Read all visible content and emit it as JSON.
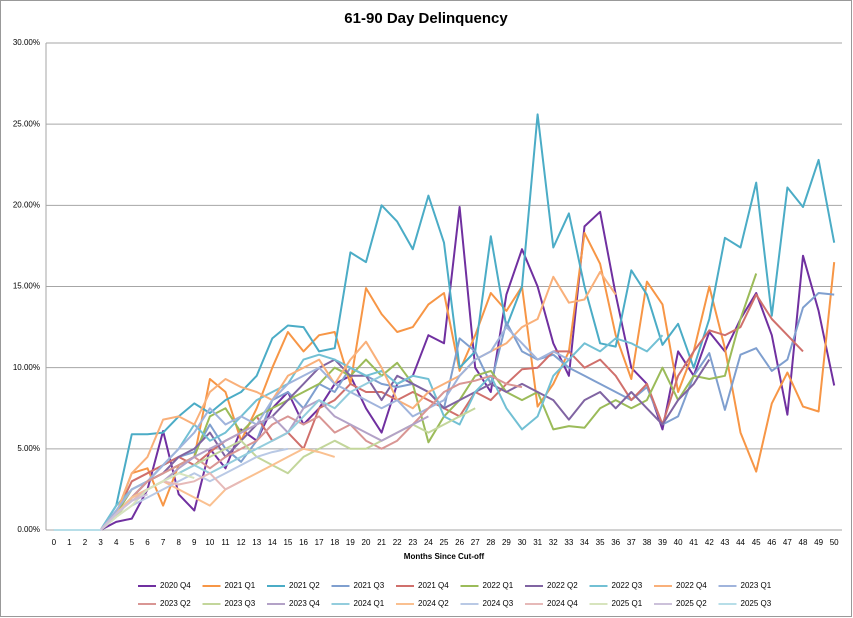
{
  "chart_data": {
    "type": "line",
    "title": "61-90 Day Delinquency",
    "x_label": "Months Since Cut-off",
    "x": [
      0,
      1,
      2,
      3,
      4,
      5,
      6,
      7,
      8,
      9,
      10,
      11,
      12,
      13,
      14,
      15,
      16,
      17,
      18,
      19,
      20,
      21,
      22,
      23,
      24,
      25,
      26,
      27,
      28,
      29,
      30,
      31,
      32,
      33,
      34,
      35,
      36,
      37,
      38,
      39,
      40,
      41,
      42,
      43,
      44,
      45,
      46,
      47,
      48,
      49,
      50
    ],
    "ylim": [
      0,
      30
    ],
    "yticks": [
      {
        "value": 0,
        "label": "0.00%"
      },
      {
        "value": 5,
        "label": "5.00%"
      },
      {
        "value": 10,
        "label": "10.00%"
      },
      {
        "value": 15,
        "label": "15.00%"
      },
      {
        "value": 20,
        "label": "20.00%"
      },
      {
        "value": 25,
        "label": "25.00%"
      },
      {
        "value": 30,
        "label": "30.00%"
      }
    ],
    "grid": true,
    "legend": "bottom",
    "series": [
      {
        "name": "2020 Q4",
        "color": "#7030a0",
        "values": [
          0,
          0,
          0,
          0,
          0.5,
          0.7,
          2.5,
          6.1,
          2.2,
          1.2,
          5.0,
          3.8,
          6.2,
          5.5,
          7.5,
          8.5,
          6.5,
          7.5,
          9.0,
          9.5,
          7.5,
          6.0,
          9.0,
          9.5,
          12.0,
          11.5,
          19.9,
          10.0,
          8.5,
          14.5,
          17.3,
          15.0,
          11.5,
          9.5,
          18.7,
          19.6,
          14.5,
          10.0,
          9.0,
          6.2,
          11.0,
          9.5,
          12.2,
          11.0,
          13.0,
          14.6,
          12.0,
          7.1,
          16.9,
          13.5,
          8.9
        ]
      },
      {
        "name": "2021 Q1",
        "color": "#f79646",
        "values": [
          0,
          0,
          0,
          0,
          1.0,
          3.5,
          3.8,
          1.5,
          4.0,
          4.5,
          9.3,
          8.5,
          5.5,
          7.5,
          10.0,
          12.2,
          11.0,
          12.0,
          12.2,
          9.0,
          14.9,
          13.3,
          12.2,
          12.5,
          13.9,
          14.6,
          9.8,
          12.0,
          14.6,
          13.5,
          15.0,
          7.6,
          9.0,
          11.0,
          18.3,
          16.4,
          12.0,
          9.3,
          15.3,
          13.9,
          8.5,
          11.0,
          15.0,
          11.2,
          6.0,
          3.6,
          7.8,
          9.7,
          7.6,
          7.3,
          16.5
        ]
      },
      {
        "name": "2021 Q2",
        "color": "#4bacc6",
        "values": [
          0,
          0,
          0,
          0,
          1.5,
          5.9,
          5.9,
          6.0,
          7.0,
          7.8,
          7.2,
          8.0,
          8.5,
          9.5,
          11.8,
          12.6,
          12.5,
          11.0,
          11.2,
          17.1,
          16.5,
          20.0,
          19.0,
          17.3,
          20.6,
          17.7,
          10.0,
          11.0,
          18.1,
          12.5,
          15.0,
          25.6,
          17.4,
          19.5,
          15.0,
          11.5,
          11.3,
          16.0,
          14.5,
          11.4,
          12.7,
          10.0,
          13.0,
          18.0,
          17.4,
          21.4,
          13.2,
          21.1,
          19.9,
          22.8,
          17.7
        ]
      },
      {
        "name": "2021 Q3",
        "color": "#7f9fcf",
        "values": [
          0,
          0,
          0,
          0,
          1.0,
          2.0,
          3.0,
          4.0,
          4.5,
          4.8,
          6.5,
          5.0,
          4.2,
          5.5,
          8.0,
          8.5,
          7.5,
          9.0,
          8.5,
          10.0,
          9.5,
          9.0,
          8.8,
          9.0,
          8.5,
          7.5,
          11.8,
          11.0,
          9.0,
          12.8,
          11.0,
          10.5,
          10.8,
          10.0,
          9.5,
          9.0,
          8.5,
          8.0,
          8.8,
          6.5,
          7.0,
          9.5,
          10.9,
          7.4,
          10.8,
          11.2,
          9.8,
          10.5,
          13.7,
          14.6,
          14.5
        ]
      },
      {
        "name": "2021 Q4",
        "color": "#d0706c",
        "values": [
          0,
          0,
          0,
          0,
          1.0,
          3.0,
          3.5,
          4.0,
          4.5,
          4.0,
          4.8,
          5.5,
          6.0,
          7.0,
          5.5,
          6.0,
          5.0,
          7.5,
          8.0,
          9.0,
          8.5,
          8.5,
          8.0,
          8.5,
          8.0,
          7.5,
          7.0,
          8.5,
          8.0,
          9.0,
          9.9,
          10.0,
          11.0,
          11.0,
          10.0,
          10.5,
          9.5,
          8.0,
          9.0,
          6.5,
          9.5,
          11.0,
          12.3,
          12.0,
          12.5,
          14.5,
          13.0,
          12.0,
          11.0,
          null,
          null
        ]
      },
      {
        "name": "2022 Q1",
        "color": "#9bbb59",
        "values": [
          0,
          0,
          0,
          0,
          1.0,
          2.5,
          3.0,
          3.5,
          4.0,
          4.5,
          7.0,
          7.5,
          6.0,
          7.0,
          7.5,
          8.0,
          8.5,
          9.0,
          10.0,
          9.5,
          10.5,
          9.5,
          10.3,
          9.0,
          5.4,
          7.0,
          8.0,
          9.5,
          9.8,
          8.5,
          8.0,
          8.5,
          6.2,
          6.4,
          6.3,
          7.5,
          8.0,
          7.5,
          8.0,
          10.0,
          8.0,
          9.5,
          9.3,
          9.5,
          13.0,
          15.8,
          null,
          null,
          null,
          null,
          null
        ]
      },
      {
        "name": "2022 Q2",
        "color": "#8064a2",
        "values": [
          0,
          0,
          0,
          0,
          1.0,
          2.0,
          3.0,
          3.5,
          4.5,
          5.0,
          6.0,
          4.5,
          5.5,
          6.5,
          7.0,
          8.0,
          9.0,
          10.0,
          10.5,
          9.5,
          9.5,
          8.0,
          9.5,
          9.0,
          8.5,
          7.5,
          8.0,
          8.5,
          9.0,
          8.5,
          9.0,
          8.5,
          8.0,
          6.8,
          8.0,
          8.5,
          7.5,
          8.5,
          7.5,
          6.5,
          8.0,
          9.0,
          10.5,
          null,
          null,
          null,
          null,
          null,
          null,
          null,
          null
        ]
      },
      {
        "name": "2022 Q3",
        "color": "#72c0d4",
        "values": [
          0,
          0,
          0,
          0,
          1.5,
          2.5,
          3.0,
          4.0,
          5.0,
          6.5,
          5.5,
          6.0,
          7.0,
          8.0,
          8.5,
          9.0,
          10.5,
          10.8,
          10.5,
          10.0,
          9.5,
          9.8,
          9.0,
          9.5,
          9.3,
          7.0,
          6.5,
          8.5,
          9.5,
          7.5,
          6.2,
          7.0,
          9.5,
          10.5,
          11.5,
          11.0,
          11.8,
          11.5,
          11.0,
          12.0,
          null,
          null,
          null,
          null,
          null,
          null,
          null,
          null,
          null,
          null,
          null
        ]
      },
      {
        "name": "2022 Q4",
        "color": "#f9b07a",
        "values": [
          0,
          0,
          0,
          0,
          1.0,
          3.5,
          4.5,
          6.8,
          7.0,
          6.5,
          8.5,
          9.3,
          8.8,
          8.5,
          8.0,
          9.5,
          10.0,
          10.5,
          9.0,
          10.5,
          11.6,
          10.0,
          8.0,
          7.5,
          8.5,
          9.0,
          9.5,
          10.5,
          11.0,
          11.5,
          12.5,
          13.0,
          15.6,
          14.0,
          14.2,
          15.9,
          14.5,
          null,
          null,
          null,
          null,
          null,
          null,
          null,
          null,
          null,
          null,
          null,
          null,
          null,
          null
        ]
      },
      {
        "name": "2023 Q1",
        "color": "#a0b4dc",
        "values": [
          0,
          0,
          0,
          0,
          1.2,
          2.5,
          3.0,
          4.0,
          5.0,
          6.0,
          7.5,
          6.5,
          7.0,
          6.5,
          8.0,
          9.0,
          9.5,
          10.0,
          9.0,
          8.5,
          8.0,
          7.5,
          8.0,
          7.0,
          7.5,
          8.0,
          9.5,
          10.5,
          11.0,
          12.5,
          11.5,
          10.5,
          11.0,
          10.5,
          null,
          null,
          null,
          null,
          null,
          null,
          null,
          null,
          null,
          null,
          null,
          null,
          null,
          null,
          null,
          null,
          null
        ]
      },
      {
        "name": "2023 Q2",
        "color": "#d99694",
        "values": [
          0,
          0,
          0,
          0,
          1.0,
          2.0,
          3.0,
          3.5,
          4.0,
          4.5,
          3.8,
          4.5,
          5.0,
          5.5,
          6.5,
          7.0,
          6.5,
          7.0,
          6.0,
          6.5,
          5.5,
          5.0,
          5.5,
          6.5,
          7.5,
          8.5,
          9.0,
          9.2,
          9.5,
          9.0,
          8.8,
          null,
          null,
          null,
          null,
          null,
          null,
          null,
          null,
          null,
          null,
          null,
          null,
          null,
          null,
          null,
          null,
          null,
          null,
          null,
          null
        ]
      },
      {
        "name": "2023 Q3",
        "color": "#c3d69b",
        "values": [
          0,
          0,
          0,
          0,
          0.8,
          2.0,
          2.5,
          3.0,
          3.5,
          4.0,
          4.5,
          5.0,
          5.5,
          4.5,
          4.0,
          3.5,
          4.5,
          5.0,
          5.5,
          5.0,
          5.0,
          5.5,
          6.0,
          6.5,
          6.0,
          6.5,
          7.0,
          7.5,
          null,
          null,
          null,
          null,
          null,
          null,
          null,
          null,
          null,
          null,
          null,
          null,
          null,
          null,
          null,
          null,
          null,
          null,
          null,
          null,
          null,
          null,
          null
        ]
      },
      {
        "name": "2023 Q4",
        "color": "#b3a2c7",
        "values": [
          0,
          0,
          0,
          0,
          1.0,
          2.0,
          2.5,
          3.0,
          3.8,
          4.5,
          5.0,
          5.5,
          6.0,
          6.5,
          7.0,
          6.0,
          7.5,
          8.0,
          7.0,
          6.5,
          6.0,
          5.5,
          6.0,
          6.5,
          7.0,
          null,
          null,
          null,
          null,
          null,
          null,
          null,
          null,
          null,
          null,
          null,
          null,
          null,
          null,
          null,
          null,
          null,
          null,
          null,
          null,
          null,
          null,
          null,
          null,
          null,
          null
        ]
      },
      {
        "name": "2024 Q1",
        "color": "#93cddd",
        "values": [
          0,
          0,
          0,
          0,
          1.0,
          2.0,
          2.5,
          3.0,
          3.5,
          4.0,
          3.5,
          4.0,
          4.5,
          5.0,
          5.5,
          6.0,
          7.0,
          8.0,
          7.5,
          8.5,
          9.0,
          9.5,
          null,
          null,
          null,
          null,
          null,
          null,
          null,
          null,
          null,
          null,
          null,
          null,
          null,
          null,
          null,
          null,
          null,
          null,
          null,
          null,
          null,
          null,
          null,
          null,
          null,
          null,
          null,
          null,
          null
        ]
      },
      {
        "name": "2024 Q2",
        "color": "#fac090",
        "values": [
          0,
          0,
          0,
          0,
          1.0,
          2.0,
          2.5,
          3.0,
          2.5,
          2.0,
          1.5,
          2.5,
          3.0,
          3.5,
          4.0,
          4.5,
          5.0,
          4.8,
          4.5,
          null,
          null,
          null,
          null,
          null,
          null,
          null,
          null,
          null,
          null,
          null,
          null,
          null,
          null,
          null,
          null,
          null,
          null,
          null,
          null,
          null,
          null,
          null,
          null,
          null,
          null,
          null,
          null,
          null,
          null,
          null,
          null
        ]
      },
      {
        "name": "2024 Q3",
        "color": "#b9c9e5",
        "values": [
          0,
          0,
          0,
          0,
          0.8,
          1.5,
          2.0,
          2.5,
          3.0,
          3.5,
          3.0,
          3.5,
          4.0,
          4.5,
          4.8,
          5.0,
          null,
          null,
          null,
          null,
          null,
          null,
          null,
          null,
          null,
          null,
          null,
          null,
          null,
          null,
          null,
          null,
          null,
          null,
          null,
          null,
          null,
          null,
          null,
          null,
          null,
          null,
          null,
          null,
          null,
          null,
          null,
          null,
          null,
          null,
          null
        ]
      },
      {
        "name": "2024 Q4",
        "color": "#e6b9b8",
        "values": [
          0,
          0,
          0,
          0,
          1.0,
          1.8,
          2.5,
          3.0,
          2.8,
          3.0,
          3.5,
          2.5,
          3.0,
          null,
          null,
          null,
          null,
          null,
          null,
          null,
          null,
          null,
          null,
          null,
          null,
          null,
          null,
          null,
          null,
          null,
          null,
          null,
          null,
          null,
          null,
          null,
          null,
          null,
          null,
          null,
          null,
          null,
          null,
          null,
          null,
          null,
          null,
          null,
          null,
          null,
          null
        ]
      },
      {
        "name": "2025 Q1",
        "color": "#d7e4bd",
        "values": [
          0,
          0,
          0,
          0,
          0.8,
          1.5,
          2.5,
          3.0,
          3.5,
          3.2,
          null,
          null,
          null,
          null,
          null,
          null,
          null,
          null,
          null,
          null,
          null,
          null,
          null,
          null,
          null,
          null,
          null,
          null,
          null,
          null,
          null,
          null,
          null,
          null,
          null,
          null,
          null,
          null,
          null,
          null,
          null,
          null,
          null,
          null,
          null,
          null,
          null,
          null,
          null,
          null,
          null
        ]
      },
      {
        "name": "2025 Q2",
        "color": "#ccc1da",
        "values": [
          0,
          0,
          0,
          0,
          1.0,
          1.8,
          2.2,
          null,
          null,
          null,
          null,
          null,
          null,
          null,
          null,
          null,
          null,
          null,
          null,
          null,
          null,
          null,
          null,
          null,
          null,
          null,
          null,
          null,
          null,
          null,
          null,
          null,
          null,
          null,
          null,
          null,
          null,
          null,
          null,
          null,
          null,
          null,
          null,
          null,
          null,
          null,
          null,
          null,
          null,
          null,
          null
        ]
      },
      {
        "name": "2025 Q3",
        "color": "#b7dee8",
        "values": [
          0,
          0,
          0,
          0,
          null,
          null,
          null,
          null,
          null,
          null,
          null,
          null,
          null,
          null,
          null,
          null,
          null,
          null,
          null,
          null,
          null,
          null,
          null,
          null,
          null,
          null,
          null,
          null,
          null,
          null,
          null,
          null,
          null,
          null,
          null,
          null,
          null,
          null,
          null,
          null,
          null,
          null,
          null,
          null,
          null,
          null,
          null,
          null,
          null,
          null,
          null
        ]
      }
    ]
  }
}
